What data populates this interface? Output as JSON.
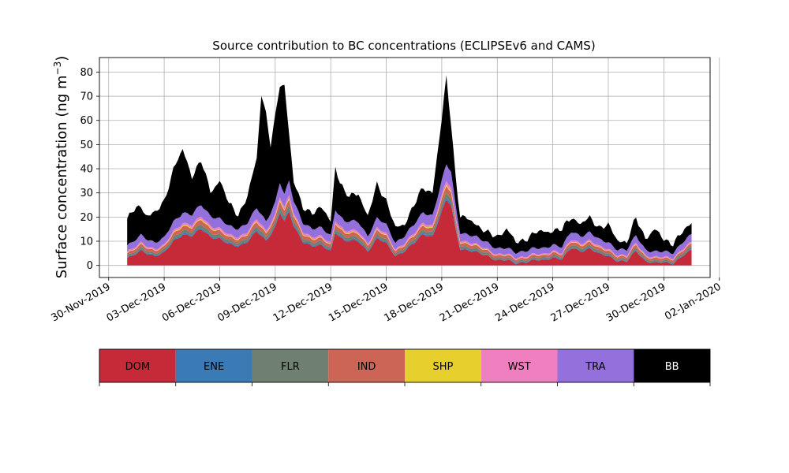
{
  "chart_data": {
    "type": "area",
    "stacked": true,
    "title": "Source contribution to BC concentrations (ECLIPSEv6 and CAMS)",
    "ylabel": "Surface concentration (ng m",
    "ylabel_exponent": "−3",
    "ylabel_suffix": ")",
    "xlabel": "",
    "x_start": "2019-12-01",
    "x_end": "2019-12-31T12:00",
    "xlim": [
      "2019-11-29T12:00",
      "2020-01-01T12:00"
    ],
    "ylim": [
      -5,
      86
    ],
    "yticks": [
      0,
      10,
      20,
      30,
      40,
      50,
      60,
      70,
      80
    ],
    "xtick_dates": [
      "2019-11-30",
      "2019-12-03",
      "2019-12-06",
      "2019-12-09",
      "2019-12-12",
      "2019-12-15",
      "2019-12-18",
      "2019-12-21",
      "2019-12-24",
      "2019-12-27",
      "2019-12-30",
      "2020-01-02"
    ],
    "xtick_labels": [
      "30-Nov-2019",
      "03-Dec-2019",
      "06-Dec-2019",
      "09-Dec-2019",
      "12-Dec-2019",
      "15-Dec-2019",
      "18-Dec-2019",
      "21-Dec-2019",
      "24-Dec-2019",
      "27-Dec-2019",
      "30-Dec-2019",
      "02-Jan-2020"
    ],
    "grid": true,
    "dom_knots": [
      [
        "2019-12-01",
        3
      ],
      [
        "2019-12-01T06:00",
        3.5
      ],
      [
        "2019-12-01T18:00",
        6
      ],
      [
        "2019-12-02T12:00",
        4
      ],
      [
        "2019-12-03",
        5
      ],
      [
        "2019-12-03T12:00",
        10
      ],
      [
        "2019-12-04",
        13
      ],
      [
        "2019-12-04T12:00",
        12
      ],
      [
        "2019-12-05",
        15
      ],
      [
        "2019-12-05T12:00",
        12
      ],
      [
        "2019-12-06",
        11
      ],
      [
        "2019-12-06T12:00",
        8.5
      ],
      [
        "2019-12-07",
        8
      ],
      [
        "2019-12-07T12:00",
        10
      ],
      [
        "2019-12-08",
        14
      ],
      [
        "2019-12-08T12:00",
        10
      ],
      [
        "2019-12-09",
        16
      ],
      [
        "2019-12-09T06:00",
        22
      ],
      [
        "2019-12-09T12:00",
        18
      ],
      [
        "2019-12-09T18:00",
        22
      ],
      [
        "2019-12-10",
        16
      ],
      [
        "2019-12-10T12:00",
        10
      ],
      [
        "2019-12-11",
        8
      ],
      [
        "2019-12-11T12:00",
        8
      ],
      [
        "2019-12-12",
        6
      ],
      [
        "2019-12-12T06:00",
        14
      ],
      [
        "2019-12-12T18:00",
        10
      ],
      [
        "2019-12-13T12:00",
        10
      ],
      [
        "2019-12-14",
        6
      ],
      [
        "2019-12-14T12:00",
        11
      ],
      [
        "2019-12-15",
        9
      ],
      [
        "2019-12-15T12:00",
        4
      ],
      [
        "2019-12-16",
        6
      ],
      [
        "2019-12-16T12:00",
        9
      ],
      [
        "2019-12-17",
        13
      ],
      [
        "2019-12-17T12:00",
        12
      ],
      [
        "2019-12-18",
        22
      ],
      [
        "2019-12-18T06:00",
        27
      ],
      [
        "2019-12-18T12:00",
        25
      ],
      [
        "2019-12-18T18:00",
        15
      ],
      [
        "2019-12-19",
        7
      ],
      [
        "2019-12-19T12:00",
        6
      ],
      [
        "2019-12-20",
        5
      ],
      [
        "2019-12-20T12:00",
        4
      ],
      [
        "2019-12-21",
        2
      ],
      [
        "2019-12-21T12:00",
        2
      ],
      [
        "2019-12-22",
        1
      ],
      [
        "2019-12-22T12:00",
        1.5
      ],
      [
        "2019-12-23",
        2
      ],
      [
        "2019-12-23T12:00",
        2
      ],
      [
        "2019-12-24",
        3.5
      ],
      [
        "2019-12-24T12:00",
        2.5
      ],
      [
        "2019-12-25",
        7
      ],
      [
        "2019-12-25T12:00",
        6
      ],
      [
        "2019-12-26",
        7
      ],
      [
        "2019-12-26T12:00",
        4.5
      ],
      [
        "2019-12-27",
        4
      ],
      [
        "2019-12-27T12:00",
        2
      ],
      [
        "2019-12-28",
        1.5
      ],
      [
        "2019-12-28T12:00",
        6
      ],
      [
        "2019-12-29",
        2
      ],
      [
        "2019-12-29T12:00",
        1
      ],
      [
        "2019-12-30",
        1
      ],
      [
        "2019-12-30T12:00",
        1
      ],
      [
        "2019-12-31",
        4
      ],
      [
        "2019-12-31T12:00",
        6
      ]
    ],
    "bb_knots": [
      [
        "2019-12-01",
        11
      ],
      [
        "2019-12-01T12:00",
        13
      ],
      [
        "2019-12-02",
        10
      ],
      [
        "2019-12-02T12:00",
        12
      ],
      [
        "2019-12-03",
        15
      ],
      [
        "2019-12-03T12:00",
        22
      ],
      [
        "2019-12-04",
        26
      ],
      [
        "2019-12-04T12:00",
        16
      ],
      [
        "2019-12-05",
        18
      ],
      [
        "2019-12-05T12:00",
        10
      ],
      [
        "2019-12-06",
        16
      ],
      [
        "2019-12-06T12:00",
        9
      ],
      [
        "2019-12-07",
        6
      ],
      [
        "2019-12-07T12:00",
        11
      ],
      [
        "2019-12-08",
        20
      ],
      [
        "2019-12-08T06:00",
        50
      ],
      [
        "2019-12-08T12:00",
        45
      ],
      [
        "2019-12-08T18:00",
        28
      ],
      [
        "2019-12-09",
        35
      ],
      [
        "2019-12-09T06:00",
        40
      ],
      [
        "2019-12-09T12:00",
        45
      ],
      [
        "2019-12-09T18:00",
        20
      ],
      [
        "2019-12-10",
        8
      ],
      [
        "2019-12-10T12:00",
        6
      ],
      [
        "2019-12-11",
        7
      ],
      [
        "2019-12-11T12:00",
        8
      ],
      [
        "2019-12-12",
        6
      ],
      [
        "2019-12-12T06:00",
        18
      ],
      [
        "2019-12-12T12:00",
        14
      ],
      [
        "2019-12-13",
        10
      ],
      [
        "2019-12-13T12:00",
        12
      ],
      [
        "2019-12-14",
        8
      ],
      [
        "2019-12-14T12:00",
        14
      ],
      [
        "2019-12-15",
        10
      ],
      [
        "2019-12-15T12:00",
        6
      ],
      [
        "2019-12-16",
        5
      ],
      [
        "2019-12-16T12:00",
        8
      ],
      [
        "2019-12-17",
        10
      ],
      [
        "2019-12-17T12:00",
        10
      ],
      [
        "2019-12-18",
        25
      ],
      [
        "2019-12-18T06:00",
        36
      ],
      [
        "2019-12-18T12:00",
        20
      ],
      [
        "2019-12-18T18:00",
        12
      ],
      [
        "2019-12-19",
        7
      ],
      [
        "2019-12-19T12:00",
        6
      ],
      [
        "2019-12-20",
        5
      ],
      [
        "2019-12-20T12:00",
        4
      ],
      [
        "2019-12-21",
        5
      ],
      [
        "2019-12-21T12:00",
        8
      ],
      [
        "2019-12-22",
        4
      ],
      [
        "2019-12-22T12:00",
        5
      ],
      [
        "2019-12-23",
        6
      ],
      [
        "2019-12-23T12:00",
        7
      ],
      [
        "2019-12-24",
        6
      ],
      [
        "2019-12-24T12:00",
        7
      ],
      [
        "2019-12-25",
        6
      ],
      [
        "2019-12-25T12:00",
        5
      ],
      [
        "2019-12-26",
        6
      ],
      [
        "2019-12-26T12:00",
        5
      ],
      [
        "2019-12-27",
        7
      ],
      [
        "2019-12-27T12:00",
        4
      ],
      [
        "2019-12-28",
        3
      ],
      [
        "2019-12-28T12:00",
        7
      ],
      [
        "2019-12-29",
        5
      ],
      [
        "2019-12-29T12:00",
        9
      ],
      [
        "2019-12-30",
        5
      ],
      [
        "2019-12-30T12:00",
        4
      ],
      [
        "2019-12-31",
        4
      ],
      [
        "2019-12-31T12:00",
        5
      ]
    ],
    "other_components": {
      "ENE": [
        0.2,
        0.03
      ],
      "FLR": [
        0.6,
        0.05
      ],
      "IND": [
        0.8,
        0.07
      ],
      "SHP": [
        0.1,
        0.02
      ],
      "WST": [
        0.4,
        0.04
      ],
      "TRA": [
        2.0,
        0.18
      ]
    },
    "series": [
      {
        "name": "DOM",
        "color": "#c62a39"
      },
      {
        "name": "ENE",
        "color": "#3a7bb5"
      },
      {
        "name": "FLR",
        "color": "#6f8070"
      },
      {
        "name": "IND",
        "color": "#cc6555"
      },
      {
        "name": "SHP",
        "color": "#e7d02e"
      },
      {
        "name": "WST",
        "color": "#f07fbf"
      },
      {
        "name": "TRA",
        "color": "#9370db"
      },
      {
        "name": "BB",
        "color": "#000000"
      }
    ]
  }
}
